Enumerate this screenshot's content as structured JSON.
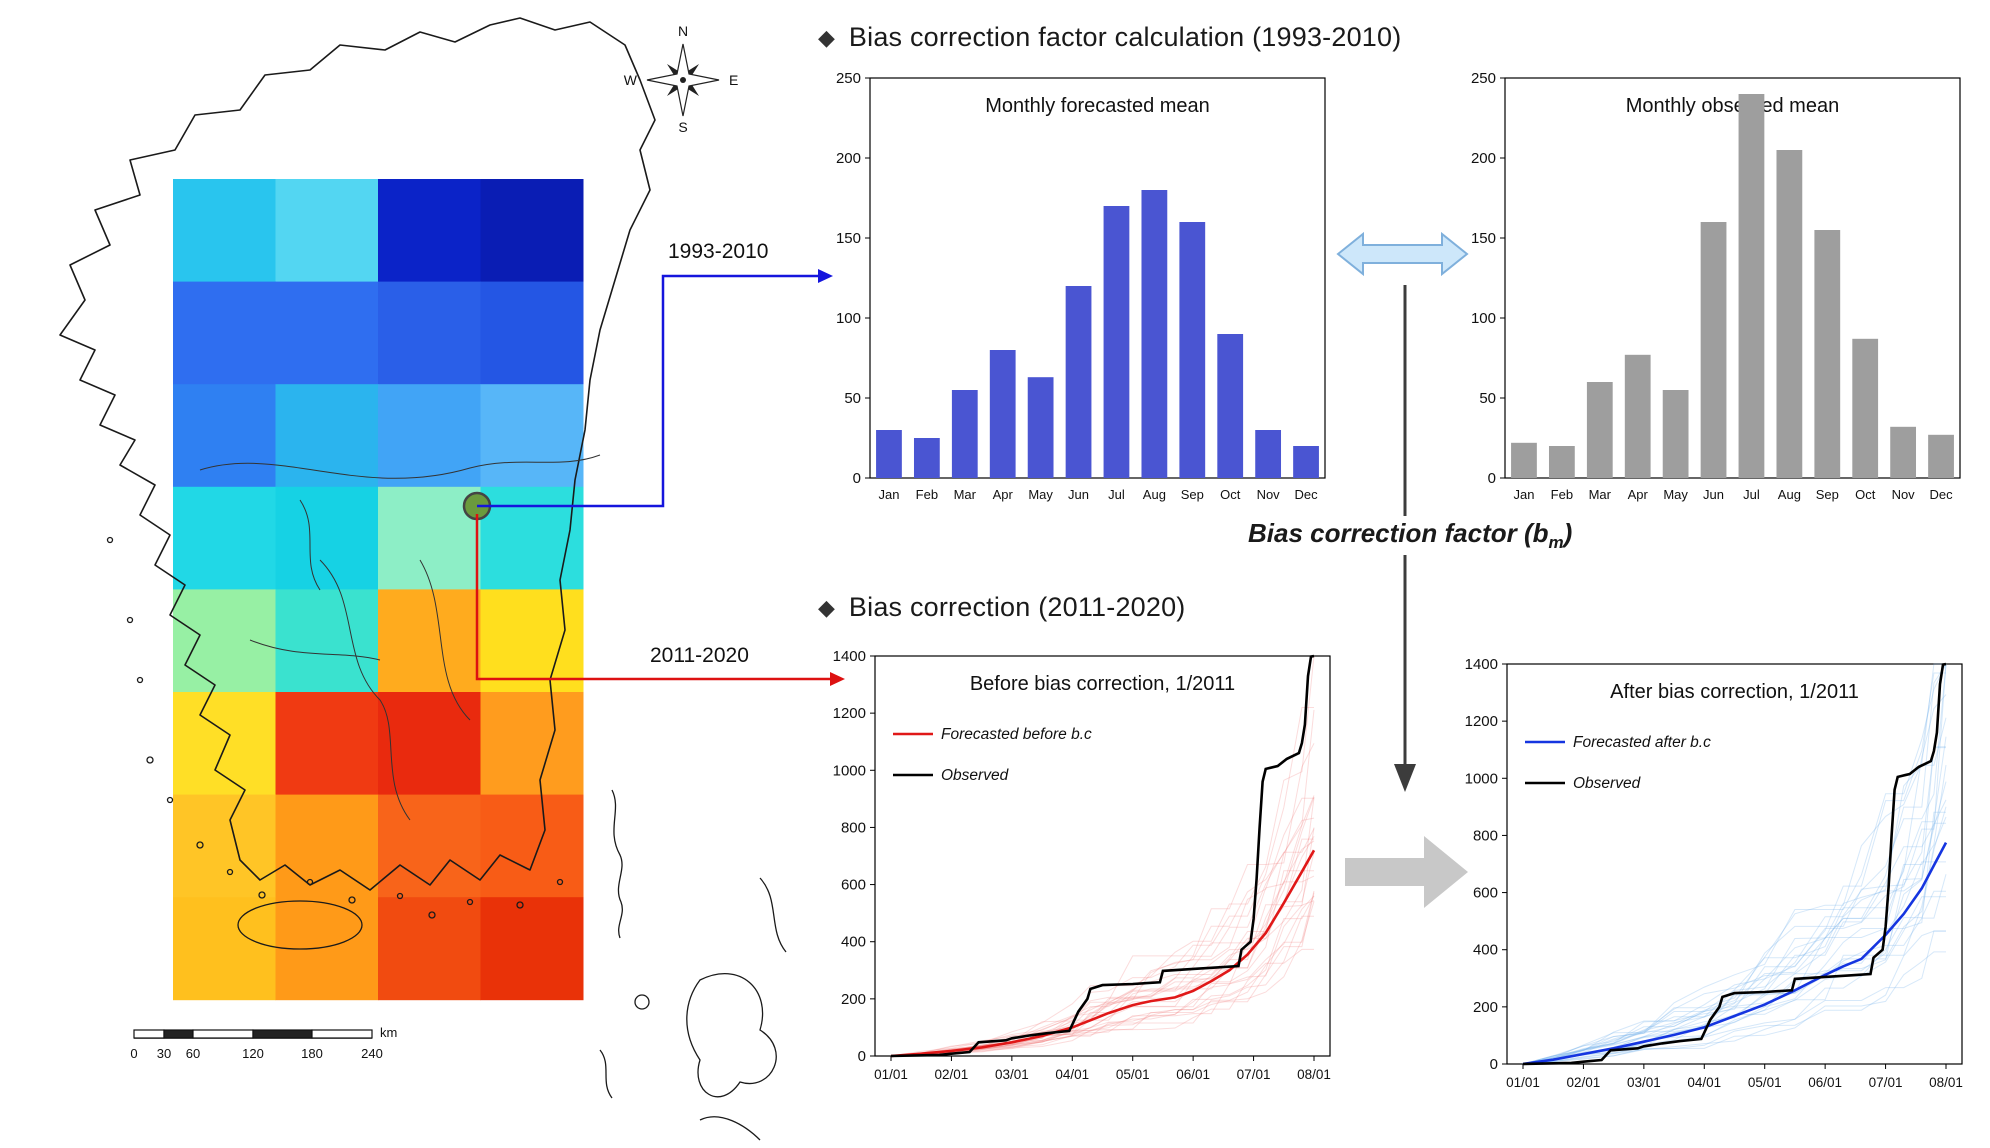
{
  "bullets": {
    "diamond": "◆"
  },
  "sections": {
    "s1": "Bias correction factor calculation (1993-2010)",
    "s2": "Bias correction (2011-2020)"
  },
  "labels": {
    "period_blue": "1993-2010",
    "period_red": "2011-2020",
    "bias_prefix": "Bias correction factor (b",
    "bias_sub": "m",
    "bias_suffix": ")"
  },
  "map": {
    "compass": {
      "n": "N",
      "e": "E",
      "s": "S",
      "w": "W"
    },
    "scale_labels": [
      "0",
      "30",
      "60",
      "120",
      "180",
      "240"
    ],
    "scale_unit": "km",
    "marker_color": "#6b9a3d",
    "grid_colors": [
      [
        "#29c5ee",
        "#53d6f2",
        "#0b23c8",
        "#0a1db4"
      ],
      [
        "#2f6ef0",
        "#2f6ef0",
        "#2a5fe8",
        "#2456e4"
      ],
      [
        "#2f80f2",
        "#2bb4ee",
        "#41a4f6",
        "#57b6f8"
      ],
      [
        "#21d8e6",
        "#16d2e4",
        "#8deec6",
        "#2cdede"
      ],
      [
        "#97f0a4",
        "#3ae2cf",
        "#ffab1e",
        "#ffdf1e"
      ],
      [
        "#ffdf26",
        "#f03a12",
        "#e92a0e",
        "#ff9c1e"
      ],
      [
        "#ffc526",
        "#ff9a18",
        "#f8641a",
        "#f85c16"
      ],
      [
        "#ffc01e",
        "#ff9a18",
        "#f14b10",
        "#e93208"
      ]
    ]
  },
  "chart_data": [
    {
      "id": "forecast_bar",
      "type": "bar",
      "title": "Monthly forecasted mean",
      "categories": [
        "Jan",
        "Feb",
        "Mar",
        "Apr",
        "May",
        "Jun",
        "Jul",
        "Aug",
        "Sep",
        "Oct",
        "Nov",
        "Dec"
      ],
      "values": [
        30,
        25,
        55,
        80,
        63,
        120,
        170,
        180,
        160,
        90,
        30,
        20
      ],
      "bar_color": "#4a55d2",
      "ylim": [
        0,
        250
      ],
      "yticks": [
        0,
        50,
        100,
        150,
        200,
        250
      ]
    },
    {
      "id": "observed_bar",
      "type": "bar",
      "title": "Monthly observed mean",
      "categories": [
        "Jan",
        "Feb",
        "Mar",
        "Apr",
        "May",
        "Jun",
        "Jul",
        "Aug",
        "Sep",
        "Oct",
        "Nov",
        "Dec"
      ],
      "values": [
        22,
        20,
        60,
        77,
        55,
        160,
        240,
        205,
        155,
        87,
        32,
        27
      ],
      "bar_color": "#9e9e9e",
      "ylim": [
        0,
        250
      ],
      "yticks": [
        0,
        50,
        100,
        150,
        200,
        250
      ]
    },
    {
      "id": "before_line",
      "type": "line",
      "title": "Before bias correction, 1/2011",
      "xticks": [
        "01/01",
        "02/01",
        "03/01",
        "04/01",
        "05/01",
        "06/01",
        "07/01",
        "08/01"
      ],
      "ylim": [
        0,
        1400
      ],
      "yticks": [
        0,
        200,
        400,
        600,
        800,
        1000,
        1200,
        1400
      ],
      "ensemble_color": "rgba(242,130,130,0.28)",
      "legend": [
        {
          "label": "Forecasted before b.c",
          "color": "#e01818"
        },
        {
          "label": "Observed",
          "color": "#000000"
        }
      ],
      "series": [
        {
          "name": "Forecasted before b.c",
          "color": "#e01818",
          "width": 2.6,
          "points": [
            [
              0,
              0
            ],
            [
              0.5,
              8
            ],
            [
              1,
              18
            ],
            [
              1.5,
              30
            ],
            [
              2,
              48
            ],
            [
              2.5,
              70
            ],
            [
              3,
              100
            ],
            [
              3.3,
              125
            ],
            [
              3.6,
              150
            ],
            [
              4,
              178
            ],
            [
              4.3,
              192
            ],
            [
              4.7,
              205
            ],
            [
              5,
              228
            ],
            [
              5.3,
              262
            ],
            [
              5.6,
              300
            ],
            [
              5.9,
              355
            ],
            [
              6.2,
              430
            ],
            [
              6.5,
              535
            ],
            [
              6.8,
              645
            ],
            [
              7,
              720
            ]
          ]
        },
        {
          "name": "Observed",
          "color": "#000000",
          "width": 2.6,
          "points": [
            [
              0,
              0
            ],
            [
              0.8,
              4
            ],
            [
              1,
              8
            ],
            [
              1.3,
              14
            ],
            [
              1.45,
              48
            ],
            [
              1.9,
              55
            ],
            [
              2,
              62
            ],
            [
              2.3,
              72
            ],
            [
              2.6,
              80
            ],
            [
              2.95,
              88
            ],
            [
              3,
              110
            ],
            [
              3.1,
              155
            ],
            [
              3.25,
              200
            ],
            [
              3.3,
              235
            ],
            [
              3.5,
              248
            ],
            [
              4,
              252
            ],
            [
              4.45,
              258
            ],
            [
              4.5,
              298
            ],
            [
              5,
              305
            ],
            [
              5.4,
              310
            ],
            [
              5.75,
              315
            ],
            [
              5.8,
              372
            ],
            [
              5.95,
              400
            ],
            [
              6,
              480
            ],
            [
              6.05,
              620
            ],
            [
              6.1,
              800
            ],
            [
              6.15,
              960
            ],
            [
              6.2,
              1005
            ],
            [
              6.4,
              1015
            ],
            [
              6.55,
              1040
            ],
            [
              6.75,
              1060
            ],
            [
              6.8,
              1095
            ],
            [
              6.85,
              1160
            ],
            [
              6.9,
              1330
            ],
            [
              6.95,
              1398
            ],
            [
              7,
              1400
            ]
          ]
        }
      ]
    },
    {
      "id": "after_line",
      "type": "line",
      "title": "After bias correction, 1/2011",
      "xticks": [
        "01/01",
        "02/01",
        "03/01",
        "04/01",
        "05/01",
        "06/01",
        "07/01",
        "08/01"
      ],
      "ylim": [
        0,
        1400
      ],
      "yticks": [
        0,
        200,
        400,
        600,
        800,
        1000,
        1200,
        1400
      ],
      "ensemble_color": "rgba(120,180,235,0.30)",
      "legend": [
        {
          "label": "Forecasted after b.c",
          "color": "#1535e0"
        },
        {
          "label": "Observed",
          "color": "#000000"
        }
      ],
      "series": [
        {
          "name": "Forecasted after b.c",
          "color": "#1535e0",
          "width": 2.6,
          "points": [
            [
              0,
              0
            ],
            [
              0.5,
              15
            ],
            [
              1,
              35
            ],
            [
              1.5,
              55
            ],
            [
              2,
              78
            ],
            [
              2.5,
              102
            ],
            [
              3,
              128
            ],
            [
              3.5,
              168
            ],
            [
              4,
              208
            ],
            [
              4.5,
              258
            ],
            [
              5,
              312
            ],
            [
              5.3,
              342
            ],
            [
              5.6,
              368
            ],
            [
              6,
              452
            ],
            [
              6.3,
              525
            ],
            [
              6.6,
              615
            ],
            [
              6.8,
              695
            ],
            [
              7,
              775
            ]
          ]
        },
        {
          "name": "Observed",
          "color": "#000000",
          "width": 2.6,
          "points": [
            [
              0,
              0
            ],
            [
              0.8,
              4
            ],
            [
              1,
              8
            ],
            [
              1.3,
              14
            ],
            [
              1.45,
              48
            ],
            [
              1.9,
              55
            ],
            [
              2,
              62
            ],
            [
              2.3,
              72
            ],
            [
              2.6,
              80
            ],
            [
              2.95,
              88
            ],
            [
              3,
              110
            ],
            [
              3.1,
              155
            ],
            [
              3.25,
              200
            ],
            [
              3.3,
              235
            ],
            [
              3.5,
              248
            ],
            [
              4,
              252
            ],
            [
              4.45,
              258
            ],
            [
              4.5,
              298
            ],
            [
              5,
              305
            ],
            [
              5.4,
              310
            ],
            [
              5.75,
              315
            ],
            [
              5.8,
              372
            ],
            [
              5.95,
              400
            ],
            [
              6,
              480
            ],
            [
              6.05,
              620
            ],
            [
              6.1,
              800
            ],
            [
              6.15,
              960
            ],
            [
              6.2,
              1005
            ],
            [
              6.4,
              1015
            ],
            [
              6.55,
              1040
            ],
            [
              6.75,
              1060
            ],
            [
              6.8,
              1095
            ],
            [
              6.85,
              1160
            ],
            [
              6.9,
              1330
            ],
            [
              6.95,
              1398
            ],
            [
              7,
              1400
            ]
          ]
        }
      ]
    }
  ]
}
